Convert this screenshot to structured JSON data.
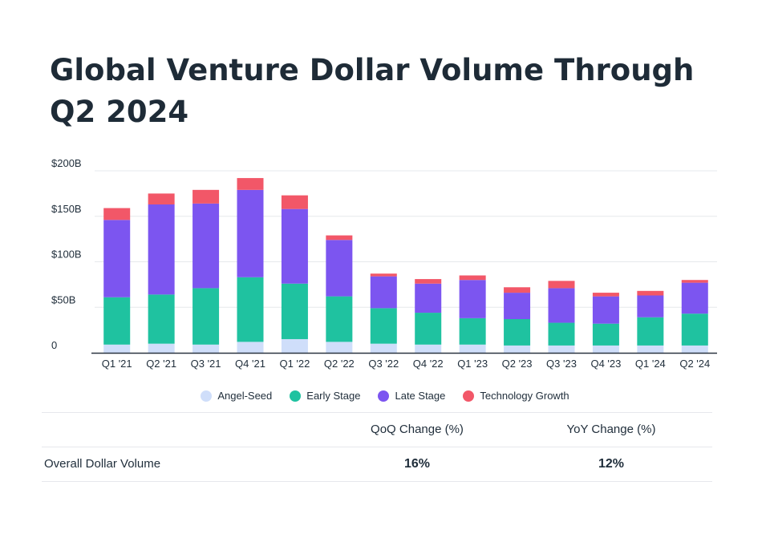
{
  "chart_data": {
    "type": "stacked-bar",
    "title": "Global Venture Dollar Volume Through Q2 2024",
    "categories": [
      "Q1 '21",
      "Q2 '21",
      "Q3 '21",
      "Q4 '21",
      "Q1 '22",
      "Q2 '22",
      "Q3 '22",
      "Q4 '22",
      "Q1 '23",
      "Q2 '23",
      "Q3 '23",
      "Q4 '23",
      "Q1 '24",
      "Q2 '24"
    ],
    "y_ticks": [
      "0",
      "$50B",
      "$100B",
      "$150B",
      "$200B"
    ],
    "ylim": [
      0,
      200
    ],
    "series": [
      {
        "name": "Angel-Seed",
        "color": "#cfdefa",
        "values": [
          9,
          10,
          9,
          12,
          15,
          12,
          10,
          9,
          9,
          8,
          8,
          8,
          8,
          8
        ]
      },
      {
        "name": "Early Stage",
        "color": "#1fc2a0",
        "values": [
          52,
          54,
          62,
          71,
          61,
          50,
          39,
          35,
          29,
          29,
          25,
          24,
          31,
          35
        ]
      },
      {
        "name": "Late Stage",
        "color": "#7c55f0",
        "values": [
          85,
          99,
          93,
          96,
          82,
          62,
          35,
          32,
          42,
          29,
          38,
          30,
          24,
          34
        ]
      },
      {
        "name": "Technology Growth",
        "color": "#f25768",
        "values": [
          13,
          12,
          15,
          13,
          15,
          5,
          3,
          5,
          5,
          6,
          8,
          4,
          5,
          3
        ]
      }
    ],
    "legend": "bottom-center"
  },
  "summary": {
    "headers": [
      "",
      "QoQ Change (%)",
      "YoY Change (%)"
    ],
    "rows": [
      {
        "label": "Overall Dollar Volume",
        "qoq": "16%",
        "yoy": "12%"
      }
    ]
  }
}
